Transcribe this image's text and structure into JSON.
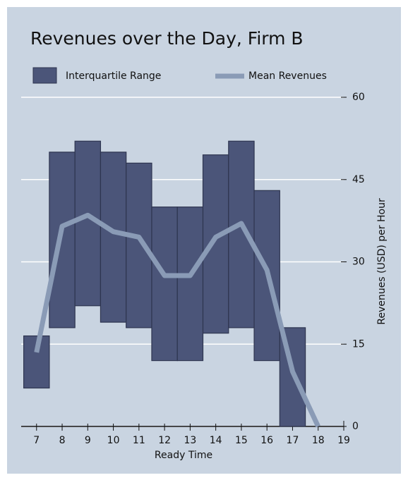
{
  "chart_data": {
    "type": "floating_bar_line",
    "title": "Revenues over the Day, Firm B",
    "xlabel": "Ready Time",
    "ylabel": "Revenues (USD) per Hour",
    "xlim": [
      6.4,
      19
    ],
    "xticks": [
      7,
      8,
      9,
      10,
      11,
      12,
      13,
      14,
      15,
      16,
      17,
      18,
      19
    ],
    "ylim": [
      0,
      60
    ],
    "yticks": [
      0,
      15,
      30,
      45,
      60
    ],
    "grid": true,
    "legend": "top",
    "series": [
      {
        "name": "Interquartile Range",
        "color": "#4b5579",
        "x": [
          7,
          8,
          9,
          10,
          11,
          12,
          13,
          14,
          15,
          16,
          17
        ],
        "low": [
          7,
          18,
          22,
          19,
          18,
          12,
          12,
          17,
          18,
          12,
          0
        ],
        "high": [
          16.5,
          50,
          52,
          50,
          48,
          40,
          40,
          49.5,
          52,
          43,
          18
        ]
      },
      {
        "name": "Mean Revenues",
        "color": "#8a9bb6",
        "x": [
          7,
          8,
          9,
          10,
          11,
          12,
          13,
          14,
          15,
          16,
          17,
          18
        ],
        "values": [
          13.5,
          36.5,
          38.5,
          35.5,
          34.5,
          27.5,
          27.5,
          34.5,
          37,
          28.5,
          10,
          0
        ]
      }
    ]
  }
}
